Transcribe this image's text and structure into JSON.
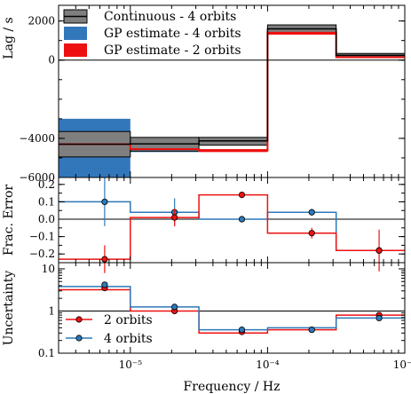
{
  "chart_data": [
    {
      "type": "line",
      "panel": "lag",
      "ylabel": "Lag / s",
      "xscale": "log",
      "yscale": "linear",
      "xlim": [
        3e-06,
        0.001
      ],
      "ylim": [
        -6000,
        2800
      ],
      "yticks": [
        2000,
        0,
        -4000,
        -6000
      ],
      "ytick_labels": [
        "2000",
        "0",
        "−4000",
        "−6000"
      ],
      "bin_edges": [
        3e-06,
        1e-05,
        3.16e-05,
        0.0001,
        0.000316,
        0.001
      ],
      "zero_line": true,
      "legend_position": "top-left",
      "legend": [
        "Continuous - 4 orbits",
        "GP estimate - 4 orbits",
        "GP estimate - 2 orbits"
      ],
      "series": [
        {
          "name": "Continuous - 4 orbits",
          "color": "#000000",
          "fill": "#7f7f7f",
          "values": [
            -4300,
            -4280,
            -4130,
            1600,
            240
          ],
          "lower": [
            -4950,
            -4650,
            -4350,
            1400,
            150
          ],
          "upper": [
            -3650,
            -3950,
            -3950,
            1800,
            340
          ]
        },
        {
          "name": "GP estimate - 4 orbits",
          "color": "#2e78b8",
          "fill": "#3377bb",
          "values": [
            -4300,
            -4500,
            -4150,
            1550,
            280
          ],
          "lower": [
            -6000,
            -4700,
            -4350,
            1400,
            200
          ],
          "upper": [
            -3000,
            -4400,
            -4000,
            1700,
            350
          ]
        },
        {
          "name": "GP estimate - 2 orbits",
          "color": "#ee1111",
          "fill": "#ee1111",
          "values": [
            -4300,
            -4550,
            -4620,
            1400,
            150
          ],
          "lower": [
            -4400,
            -4650,
            -4700,
            1300,
            100
          ],
          "upper": [
            -4200,
            -4450,
            -4550,
            1500,
            200
          ]
        }
      ]
    },
    {
      "type": "line",
      "panel": "fractional-error",
      "ylabel": "Frac. Error",
      "xscale": "log",
      "xlim": [
        3e-06,
        0.001
      ],
      "ylim": [
        -0.25,
        0.24
      ],
      "yticks": [
        0.2,
        0.1,
        0.0,
        -0.1,
        -0.2
      ],
      "ytick_labels": [
        "0.2",
        "0.1",
        "0.0",
        "−0.1",
        "−0.2"
      ],
      "zero_line": true,
      "series": [
        {
          "name": "4 orbits",
          "color": "#2e78b8",
          "steps": [
            0.1,
            0.04,
            0.0,
            0.04,
            -0.18
          ],
          "points_x": [
            6.5e-06,
            2.1e-05,
            6.5e-05,
            0.00021,
            0.00065
          ],
          "points_y": [
            0.1,
            0.04,
            0.0,
            0.04,
            -0.18
          ],
          "err": [
            0.14,
            0.08,
            0.0,
            0.02,
            0.0
          ]
        },
        {
          "name": "2 orbits",
          "color": "#ee1111",
          "steps": [
            -0.23,
            0.01,
            0.14,
            -0.08,
            -0.18
          ],
          "points_x": [
            6.5e-06,
            2.1e-05,
            6.5e-05,
            0.00021,
            0.00065
          ],
          "points_y": [
            -0.23,
            0.01,
            0.14,
            -0.08,
            -0.18
          ],
          "err": [
            0.08,
            0.05,
            0.0,
            0.03,
            0.12
          ]
        }
      ]
    },
    {
      "type": "line",
      "panel": "uncertainty",
      "ylabel": "Uncertainty",
      "xlabel": "Frequency / Hz",
      "xscale": "log",
      "yscale": "log",
      "xlim": [
        3e-06,
        0.001
      ],
      "ylim": [
        0.1,
        14
      ],
      "yticks": [
        10,
        1,
        0.1
      ],
      "ytick_labels": [
        "10",
        "1",
        "0.1"
      ],
      "xticks": [
        1e-05,
        0.0001,
        0.001
      ],
      "xtick_labels": [
        "10⁻⁵",
        "10⁻⁴",
        "10⁻³"
      ],
      "reference_line": 1,
      "legend_position": "bottom-left",
      "legend": [
        "2 orbits",
        "4 orbits"
      ],
      "series": [
        {
          "name": "2 orbits",
          "color": "#ee1111",
          "steps": [
            3.2,
            1.0,
            0.3,
            0.36,
            0.8
          ],
          "points_x": [
            6.5e-06,
            2.1e-05,
            6.5e-05,
            0.00021,
            0.00065
          ],
          "points_y": [
            3.5,
            1.0,
            0.32,
            0.36,
            0.8
          ]
        },
        {
          "name": "4 orbits",
          "color": "#2e78b8",
          "steps": [
            3.8,
            1.25,
            0.36,
            0.4,
            0.68
          ],
          "points_x": [
            6.5e-06,
            2.1e-05,
            6.5e-05,
            0.00021,
            0.00065
          ],
          "points_y": [
            4.2,
            1.25,
            0.36,
            0.36,
            0.68
          ]
        }
      ]
    }
  ]
}
